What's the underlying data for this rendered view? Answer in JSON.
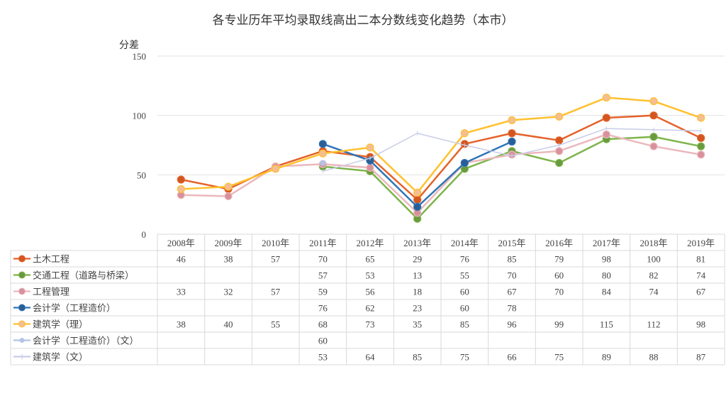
{
  "chart_data": {
    "type": "line",
    "title": "各专业历年平均录取线高出二本分数线变化趋势（本市）",
    "ylabel": "分差",
    "xlabel": "",
    "ylim": [
      0,
      150
    ],
    "yticks": [
      0,
      50,
      100,
      150
    ],
    "grid": true,
    "legend": "data-table-bottom",
    "categories": [
      "2008年",
      "2009年",
      "2010年",
      "2011年",
      "2012年",
      "2013年",
      "2014年",
      "2015年",
      "2016年",
      "2017年",
      "2018年",
      "2019年"
    ],
    "series": [
      {
        "name": "土木工程",
        "color": "#E4622A",
        "marker": "#D2561F",
        "values": [
          46,
          38,
          57,
          70,
          65,
          29,
          76,
          85,
          79,
          98,
          100,
          81
        ]
      },
      {
        "name": "交通工程（道路与桥梁）",
        "color": "#7DB44A",
        "marker": "#6A9A3E",
        "values": [
          null,
          null,
          null,
          57,
          53,
          13,
          55,
          70,
          60,
          80,
          82,
          74
        ]
      },
      {
        "name": "工程管理",
        "color": "#EBB8BC",
        "marker": "#D8919C",
        "values": [
          33,
          32,
          57,
          59,
          56,
          18,
          60,
          67,
          70,
          84,
          74,
          67
        ]
      },
      {
        "name": "会计学（工程造价）",
        "color": "#2E75B6",
        "marker": "#2A5E96",
        "values": [
          null,
          null,
          null,
          76,
          62,
          23,
          60,
          78,
          null,
          null,
          null,
          null
        ]
      },
      {
        "name": "建筑学（理）",
        "color": "#FFC12E",
        "marker": "#F5BE92",
        "values": [
          38,
          40,
          55,
          68,
          73,
          35,
          85,
          96,
          99,
          115,
          112,
          98
        ]
      },
      {
        "name": "会计学（工程造价）（文）",
        "color": "#B4C3E6",
        "marker": "#B4C3E6",
        "values": [
          null,
          null,
          null,
          60,
          null,
          null,
          null,
          null,
          null,
          null,
          null,
          null
        ]
      },
      {
        "name": "建筑学（文）",
        "color": "#C8CDE8",
        "marker": "none",
        "values": [
          null,
          null,
          null,
          53,
          64,
          85,
          75,
          66,
          75,
          89,
          88,
          87
        ]
      }
    ]
  }
}
